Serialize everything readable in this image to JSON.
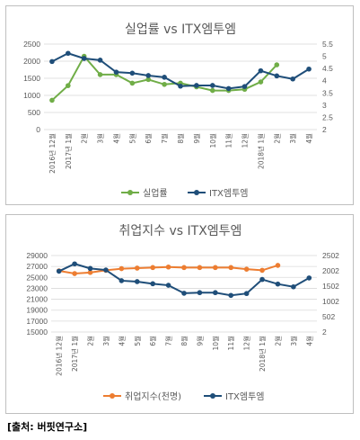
{
  "source": "[출처: 버핏연구소]",
  "chart_data": [
    {
      "type": "line",
      "title": "실업률 vs ITX엠투엠",
      "x": [
        "2016년 12월",
        "2017년 1월",
        "2월",
        "3월",
        "4월",
        "5월",
        "6월",
        "7월",
        "8월",
        "9월",
        "10월",
        "11월",
        "12월",
        "2018년 1월",
        "2월",
        "3월",
        "4월"
      ],
      "y_left_ticks": [
        "0",
        "500",
        "1000",
        "1500",
        "2000",
        "2500"
      ],
      "y_right_ticks": [
        "2",
        "2.5",
        "3",
        "3.5",
        "4",
        "4.5",
        "5",
        "5.5"
      ],
      "ylim_left": [
        0,
        2500
      ],
      "ylim_right": [
        2,
        5.5
      ],
      "series": [
        {
          "name": "실업률",
          "axis": "right",
          "color": "#70ad47",
          "values": [
            3.2,
            3.8,
            5.0,
            4.25,
            4.25,
            3.9,
            4.05,
            3.85,
            3.9,
            3.75,
            3.6,
            3.6,
            3.65,
            3.95,
            4.65,
            null,
            null
          ]
        },
        {
          "name": "ITX엠투엠",
          "axis": "left",
          "color": "#1f4e79",
          "values": [
            1990,
            2230,
            2080,
            2030,
            1680,
            1650,
            1580,
            1530,
            1270,
            1290,
            1290,
            1200,
            1260,
            1720,
            1570,
            1480,
            1770
          ]
        }
      ]
    },
    {
      "type": "line",
      "title": "취업지수 vs ITX엠투엠",
      "x": [
        "2016년 12월",
        "2017년 1월",
        "2월",
        "3월",
        "4월",
        "5월",
        "6월",
        "7월",
        "8월",
        "9월",
        "10월",
        "11월",
        "12월",
        "2018년 1월",
        "2월",
        "3월",
        "4월"
      ],
      "y_left_ticks": [
        "15000",
        "17000",
        "19000",
        "21000",
        "23000",
        "25000",
        "27000",
        "29000"
      ],
      "y_right_ticks": [
        "2",
        "502",
        "1002",
        "1502",
        "2002",
        "2502"
      ],
      "ylim_left": [
        15000,
        29000
      ],
      "ylim_right": [
        2,
        2502
      ],
      "series": [
        {
          "name": "취업지수(천명)",
          "axis": "left",
          "color": "#ed7d31",
          "values": [
            26200,
            25700,
            25900,
            26300,
            26600,
            26700,
            26800,
            26900,
            26800,
            26800,
            26800,
            26800,
            26500,
            26300,
            27200,
            null,
            null
          ]
        },
        {
          "name": "ITX엠투엠",
          "axis": "right",
          "color": "#1f4e79",
          "values": [
            1990,
            2230,
            2080,
            2030,
            1680,
            1650,
            1580,
            1530,
            1270,
            1290,
            1290,
            1200,
            1260,
            1720,
            1570,
            1480,
            1770
          ]
        }
      ]
    }
  ]
}
